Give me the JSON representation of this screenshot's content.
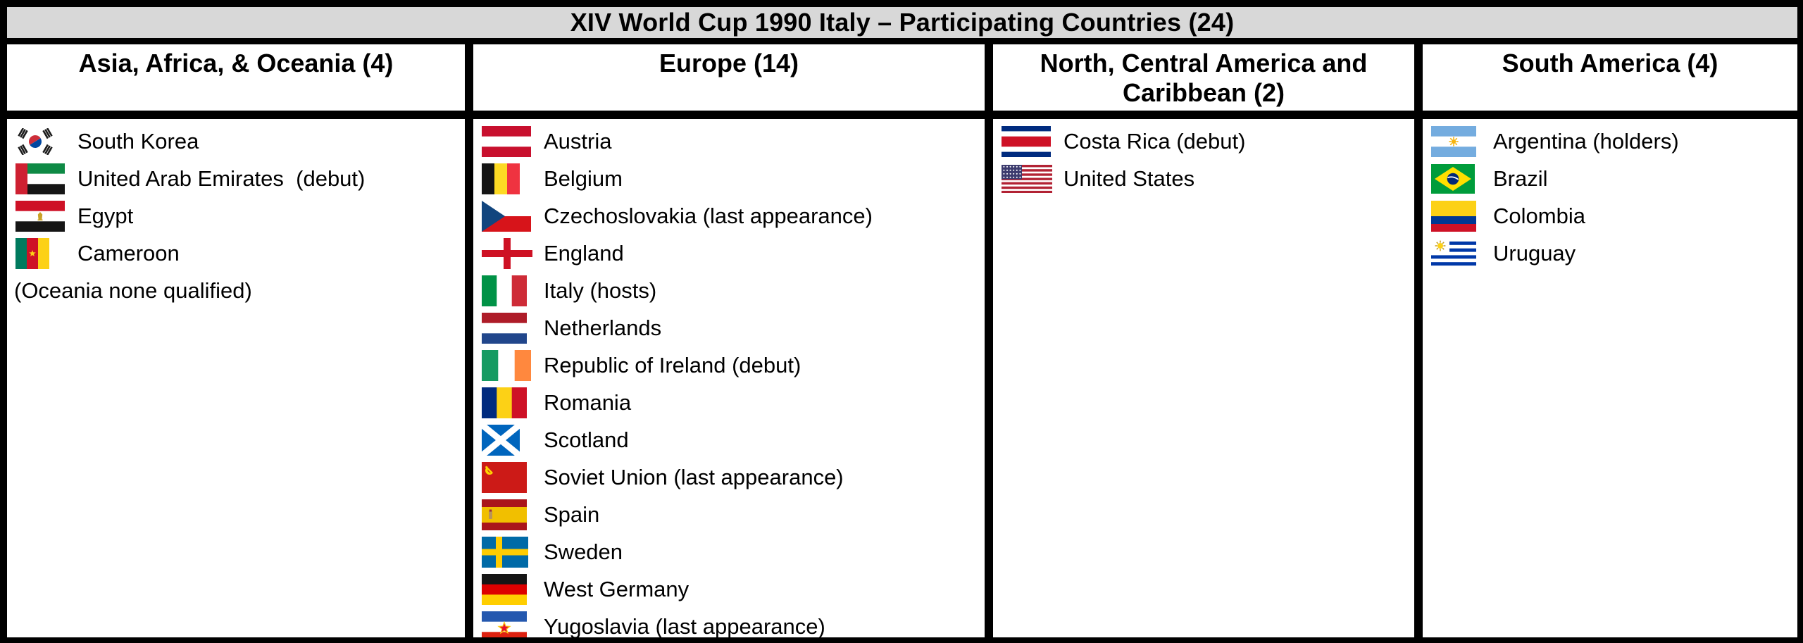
{
  "title": "XIV World Cup 1990 Italy – Participating Countries (24)",
  "colors": {
    "title_bg": "#d8d8d8",
    "border": "#000000",
    "cell_bg": "#ffffff",
    "text": "#000000"
  },
  "columns": [
    {
      "header": "Asia, Africa, & Oceania (4)",
      "entries": [
        {
          "flag": "south-korea",
          "label": "South Korea"
        },
        {
          "flag": "united-arab-emirates",
          "label": "United Arab Emirates  (debut)"
        },
        {
          "flag": "egypt",
          "label": "Egypt"
        },
        {
          "flag": "cameroon",
          "label": "Cameroon"
        },
        {
          "flag": null,
          "label": "(Oceania none qualified)"
        }
      ]
    },
    {
      "header": "Europe (14)",
      "entries": [
        {
          "flag": "austria",
          "label": "Austria"
        },
        {
          "flag": "belgium",
          "label": "Belgium"
        },
        {
          "flag": "czechoslovakia",
          "label": "Czechoslovakia (last appearance)"
        },
        {
          "flag": "england",
          "label": "England"
        },
        {
          "flag": "italy",
          "label": "Italy (hosts)"
        },
        {
          "flag": "netherlands",
          "label": "Netherlands"
        },
        {
          "flag": "republic-of-ireland",
          "label": "Republic of Ireland (debut)"
        },
        {
          "flag": "romania",
          "label": "Romania"
        },
        {
          "flag": "scotland",
          "label": "Scotland"
        },
        {
          "flag": "soviet-union",
          "label": "Soviet Union (last appearance)"
        },
        {
          "flag": "spain",
          "label": "Spain"
        },
        {
          "flag": "sweden",
          "label": "Sweden"
        },
        {
          "flag": "west-germany",
          "label": "West Germany"
        },
        {
          "flag": "yugoslavia",
          "label": "Yugoslavia (last appearance)"
        }
      ]
    },
    {
      "header": "North, Central America and Caribbean (2)",
      "entries": [
        {
          "flag": "costa-rica",
          "label": "Costa Rica (debut)"
        },
        {
          "flag": "united-states",
          "label": "United States"
        }
      ]
    },
    {
      "header": "South America (4)",
      "entries": [
        {
          "flag": "argentina",
          "label": "Argentina (holders)"
        },
        {
          "flag": "brazil",
          "label": "Brazil"
        },
        {
          "flag": "colombia",
          "label": "Colombia"
        },
        {
          "flag": "uruguay",
          "label": "Uruguay"
        }
      ]
    }
  ]
}
